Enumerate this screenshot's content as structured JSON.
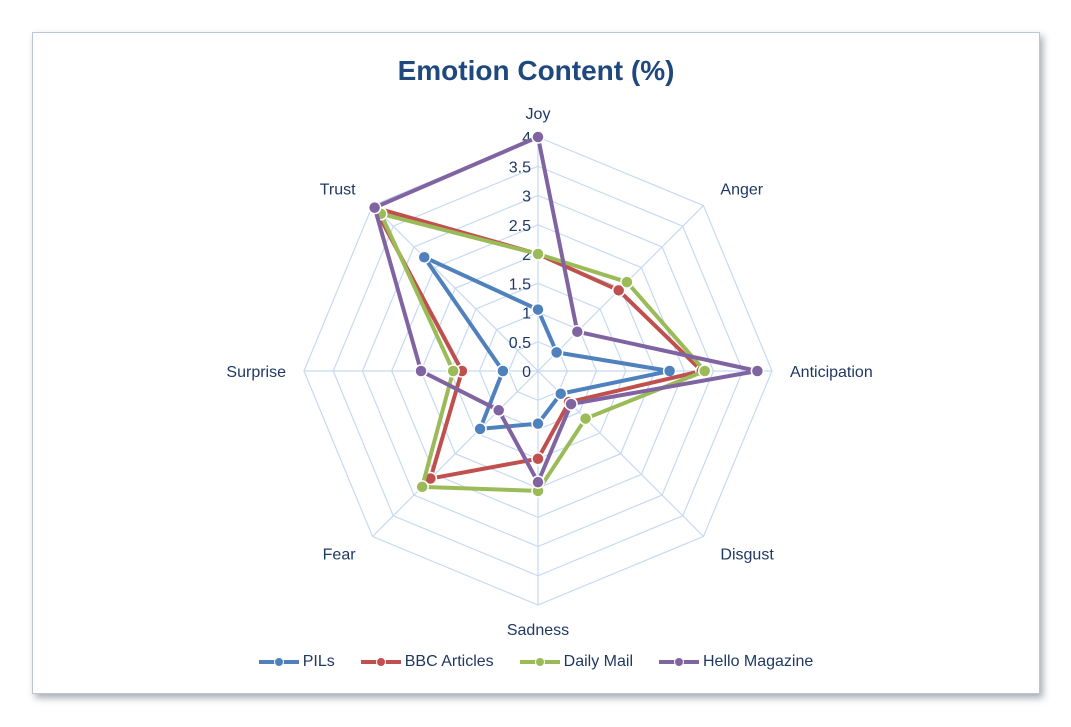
{
  "chart_data": {
    "type": "radar",
    "title": "Emotion Content (%)",
    "categories": [
      "Joy",
      "Anger",
      "Anticipation",
      "Disgust",
      "Sadness",
      "Fear",
      "Surprise",
      "Trust"
    ],
    "tick_labels": [
      "0",
      "0.5",
      "1",
      "1.5",
      "2",
      "2.5",
      "3",
      "3.5",
      "4"
    ],
    "rlim": [
      0,
      4
    ],
    "grid": true,
    "legend_position": "bottom",
    "series": [
      {
        "name": "PILs",
        "color": "#4f81bd",
        "values": [
          1.05,
          0.45,
          2.25,
          0.55,
          0.9,
          1.4,
          0.6,
          2.75
        ]
      },
      {
        "name": "BBC Articles",
        "color": "#c0504d",
        "values": [
          2.0,
          1.95,
          2.8,
          0.75,
          1.5,
          2.6,
          1.3,
          3.95
        ]
      },
      {
        "name": "Daily Mail",
        "color": "#9bbb59",
        "values": [
          2.0,
          2.15,
          2.85,
          1.15,
          2.05,
          2.8,
          1.45,
          3.8
        ]
      },
      {
        "name": "Hello Magazine",
        "color": "#8064a2",
        "values": [
          4.0,
          0.95,
          3.75,
          0.8,
          1.9,
          0.95,
          2.0,
          3.95
        ]
      }
    ]
  }
}
